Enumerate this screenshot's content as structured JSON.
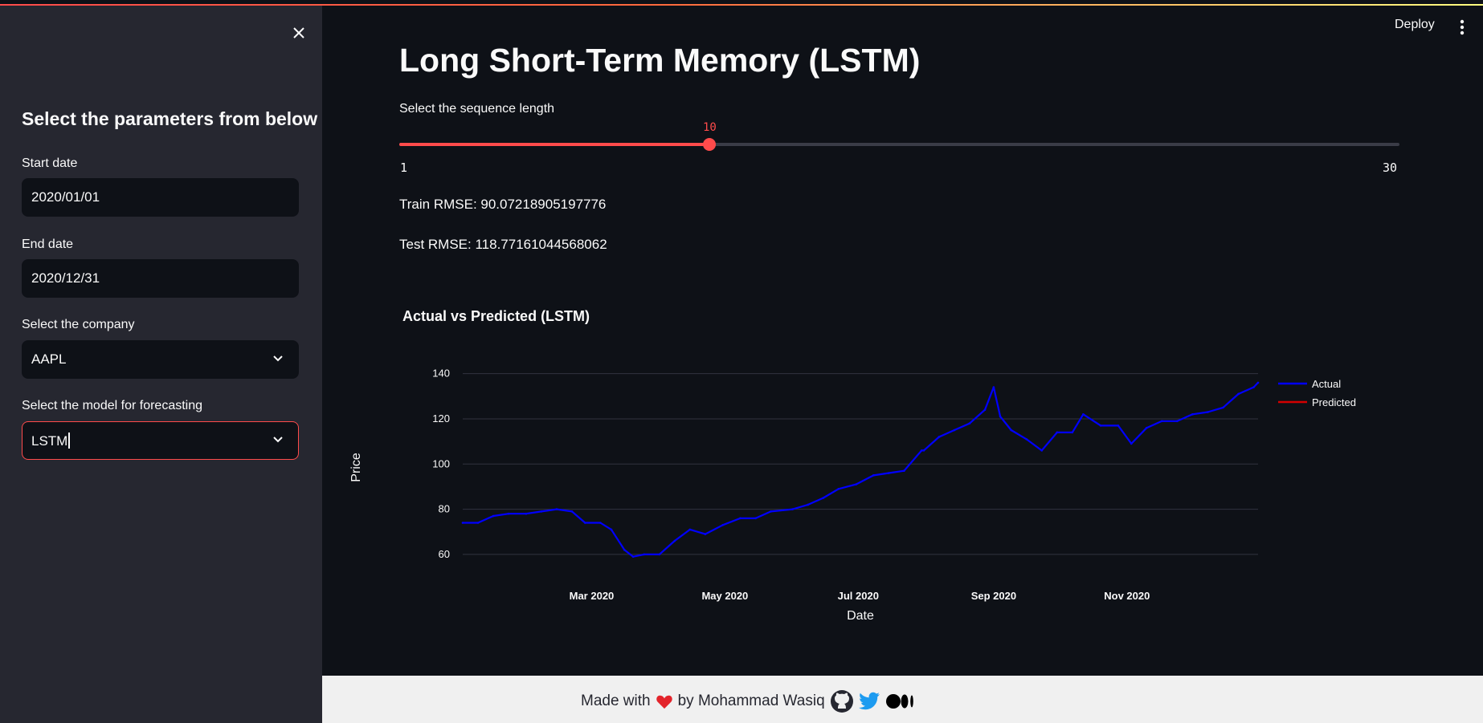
{
  "sidebar": {
    "title": "Select the parameters from below",
    "start_date_label": "Start date",
    "start_date_value": "2020/01/01",
    "end_date_label": "End date",
    "end_date_value": "2020/12/31",
    "company_label": "Select the company",
    "company_value": "AAPL",
    "model_label": "Select the model for forecasting",
    "model_value": "LSTM"
  },
  "header": {
    "deploy_label": "Deploy"
  },
  "main": {
    "title": "Long Short-Term Memory (LSTM)",
    "slider": {
      "label": "Select the sequence length",
      "min": 1,
      "max": 30,
      "value": 10,
      "min_label": "1",
      "max_label": "30",
      "value_label": "10"
    },
    "train_rmse": "Train RMSE: 90.07218905197776",
    "test_rmse": "Test RMSE: 118.77161044568062"
  },
  "chart_data": {
    "type": "line",
    "title": "Actual vs Predicted (LSTM)",
    "xlabel": "Date",
    "ylabel": "Price",
    "x_ticks": [
      "Mar 2020",
      "May 2020",
      "Jul 2020",
      "Sep 2020",
      "Nov 2020"
    ],
    "y_ticks": [
      60,
      80,
      100,
      120,
      140
    ],
    "ylim": [
      55,
      142
    ],
    "xlim": [
      "2020-01-02",
      "2020-12-31"
    ],
    "legend_position": "right",
    "series": [
      {
        "name": "Actual",
        "color": "#0000ff",
        "x": [
          "2020-01-02",
          "2020-01-09",
          "2020-01-16",
          "2020-01-23",
          "2020-01-31",
          "2020-02-07",
          "2020-02-14",
          "2020-02-21",
          "2020-02-27",
          "2020-03-05",
          "2020-03-10",
          "2020-03-16",
          "2020-03-20",
          "2020-03-25",
          "2020-04-01",
          "2020-04-08",
          "2020-04-15",
          "2020-04-22",
          "2020-04-30",
          "2020-05-08",
          "2020-05-15",
          "2020-05-22",
          "2020-06-01",
          "2020-06-08",
          "2020-06-15",
          "2020-06-22",
          "2020-06-30",
          "2020-07-08",
          "2020-07-15",
          "2020-07-22",
          "2020-07-30",
          "2020-07-31",
          "2020-08-07",
          "2020-08-14",
          "2020-08-21",
          "2020-08-28",
          "2020-09-01",
          "2020-09-04",
          "2020-09-09",
          "2020-09-16",
          "2020-09-23",
          "2020-09-30",
          "2020-10-07",
          "2020-10-12",
          "2020-10-20",
          "2020-10-28",
          "2020-11-03",
          "2020-11-10",
          "2020-11-17",
          "2020-11-24",
          "2020-12-01",
          "2020-12-08",
          "2020-12-15",
          "2020-12-22",
          "2020-12-29",
          "2020-12-31"
        ],
        "values": [
          74,
          74,
          77,
          78,
          78,
          79,
          80,
          79,
          74,
          74,
          71,
          62,
          59,
          60,
          60,
          66,
          71,
          69,
          73,
          76,
          76,
          79,
          80,
          82,
          85,
          89,
          91,
          95,
          96,
          97,
          106,
          106,
          112,
          115,
          118,
          124,
          134,
          121,
          115,
          111,
          106,
          114,
          114,
          122,
          117,
          117,
          109,
          116,
          119,
          119,
          122,
          123,
          125,
          131,
          134,
          136
        ]
      },
      {
        "name": "Predicted",
        "color": "#d40000",
        "x": [],
        "values": []
      }
    ]
  }
}
